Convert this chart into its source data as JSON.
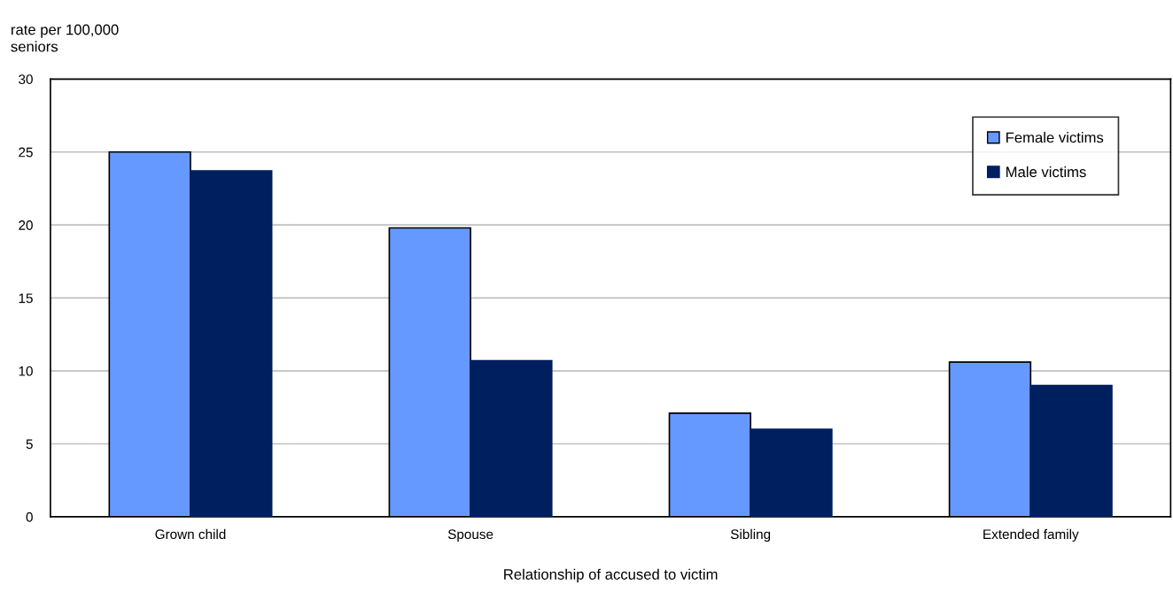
{
  "chart_data": {
    "type": "bar",
    "ylabel": "rate per 100,000\nseniors",
    "xlabel": "Relationship of accused to victim",
    "categories": [
      "Grown child",
      "Spouse",
      "Sibling",
      "Extended family"
    ],
    "series": [
      {
        "name": "Female victims",
        "color": "#6699ff",
        "values": [
          25.0,
          19.8,
          7.1,
          10.6
        ]
      },
      {
        "name": "Male victims",
        "color": "#001f5f",
        "values": [
          23.7,
          10.7,
          6.0,
          9.0
        ]
      }
    ],
    "ylim": [
      0,
      30
    ],
    "yticks": [
      0,
      5,
      10,
      15,
      20,
      25,
      30
    ],
    "grid": "y",
    "legend": "top right"
  }
}
